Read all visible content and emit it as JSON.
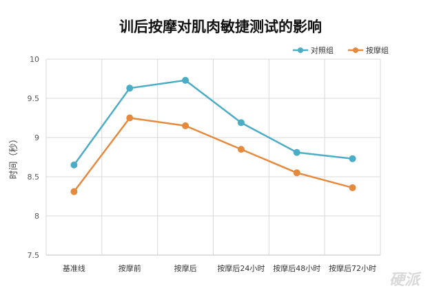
{
  "chart_data": {
    "type": "line",
    "title": "训后按摩对肌肉敏捷测试的影响",
    "xlabel": "",
    "ylabel": "时间（秒）",
    "categories": [
      "基准线",
      "按摩前",
      "按摩后",
      "按摩后24小时",
      "按摩后48小时",
      "按摩后72小时"
    ],
    "ylim": [
      7.5,
      10
    ],
    "yticks": [
      "7.5",
      "8",
      "8.5",
      "9",
      "9.5",
      "10"
    ],
    "grid": true,
    "legend_position": "top-right",
    "series": [
      {
        "name": "对照组",
        "color": "#4bacc6",
        "values": [
          8.65,
          9.63,
          9.73,
          9.19,
          8.81,
          8.73
        ]
      },
      {
        "name": "按摩组",
        "color": "#e58a3c",
        "values": [
          8.31,
          9.25,
          9.15,
          8.85,
          8.55,
          8.36
        ]
      }
    ]
  },
  "watermark": "硬派"
}
